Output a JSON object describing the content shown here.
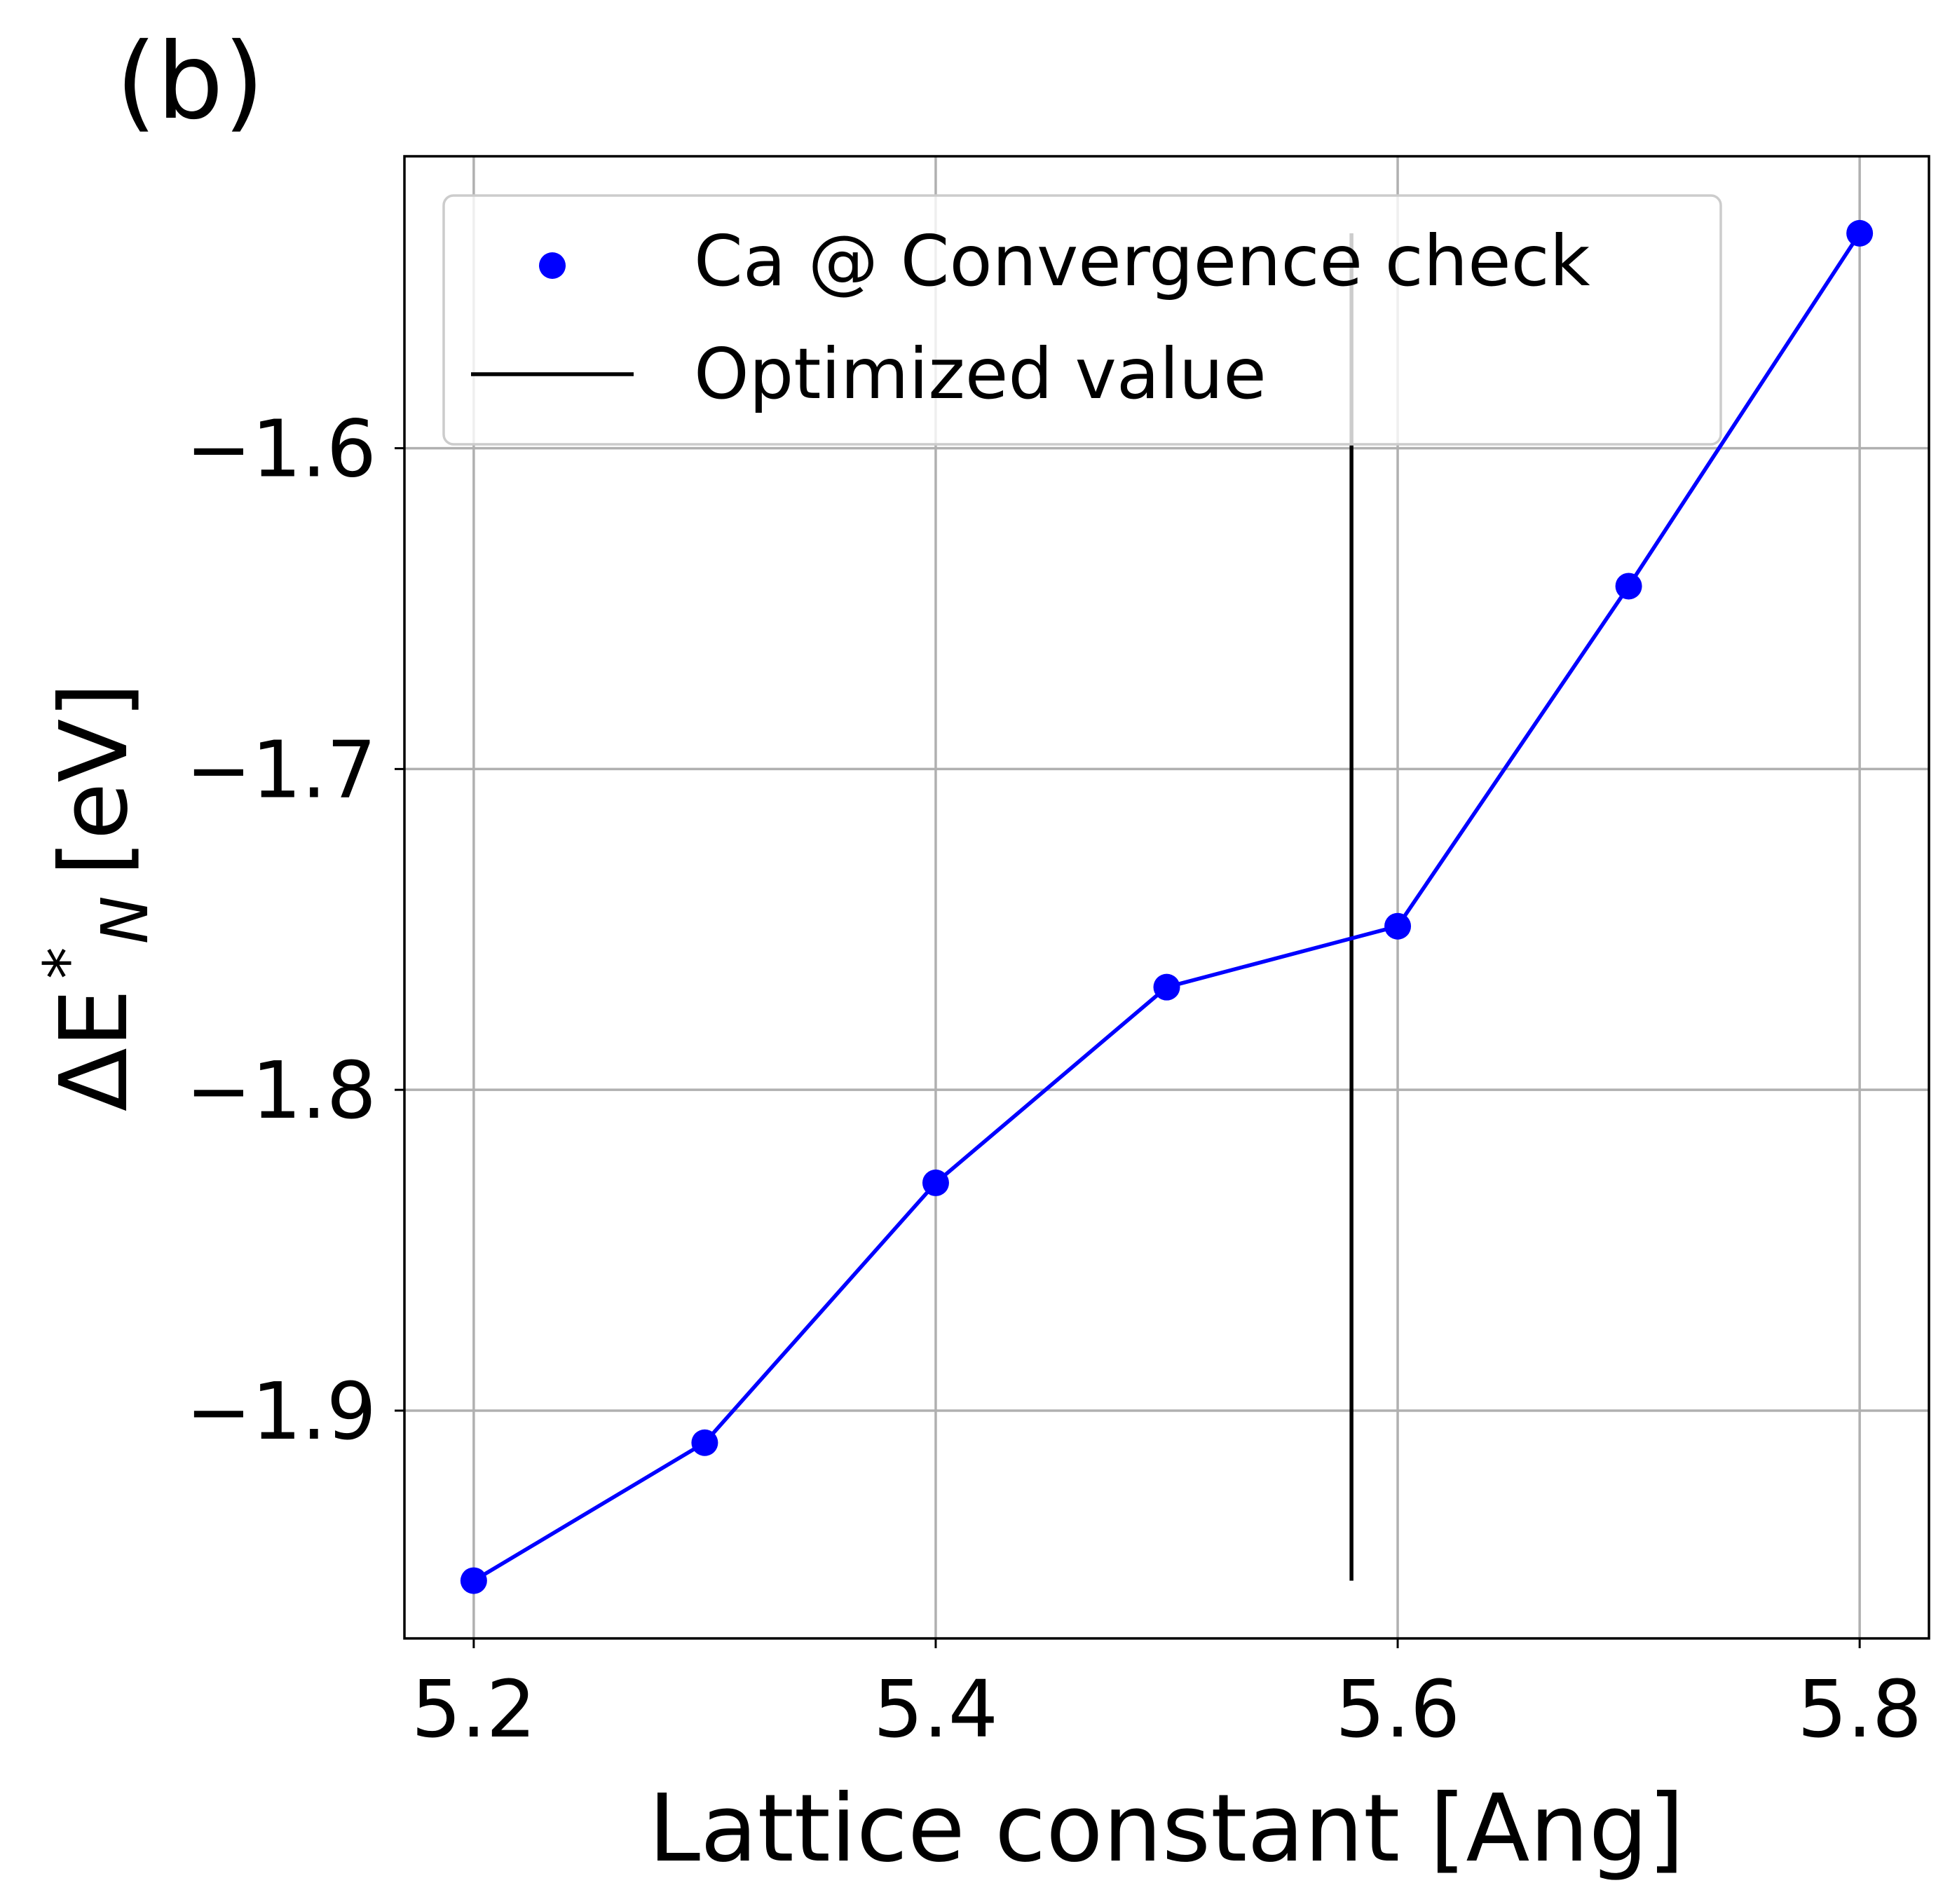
{
  "panel_label": "(b)",
  "chart_data": {
    "type": "line",
    "title": "",
    "xlabel": "Lattice constant [Ang]",
    "ylabel_main": "ΔE",
    "ylabel_sup": "*",
    "ylabel_sub": "N",
    "ylabel_unit": "[eV]",
    "xlim": [
      5.17,
      5.83
    ],
    "ylim": [
      -1.971,
      -1.509
    ],
    "xticks": [
      5.2,
      5.4,
      5.6,
      5.8
    ],
    "xtick_labels": [
      "5.2",
      "5.4",
      "5.6",
      "5.8"
    ],
    "yticks": [
      -1.9,
      -1.8,
      -1.7,
      -1.6
    ],
    "ytick_labels": [
      "−1.9",
      "−1.8",
      "−1.7",
      "−1.6"
    ],
    "grid": true,
    "legend_position": "top-left",
    "series": [
      {
        "name": "Ca @ Convergence check",
        "color": "#0000ff",
        "marker": "circle",
        "x": [
          5.2,
          5.3,
          5.4,
          5.5,
          5.6,
          5.7,
          5.8
        ],
        "y": [
          -1.953,
          -1.91,
          -1.829,
          -1.768,
          -1.749,
          -1.643,
          -1.533
        ]
      }
    ],
    "reference_line": {
      "name": "Optimized value",
      "color": "#000000",
      "x": 5.58,
      "y_range": [
        -1.953,
        -1.533
      ]
    }
  }
}
